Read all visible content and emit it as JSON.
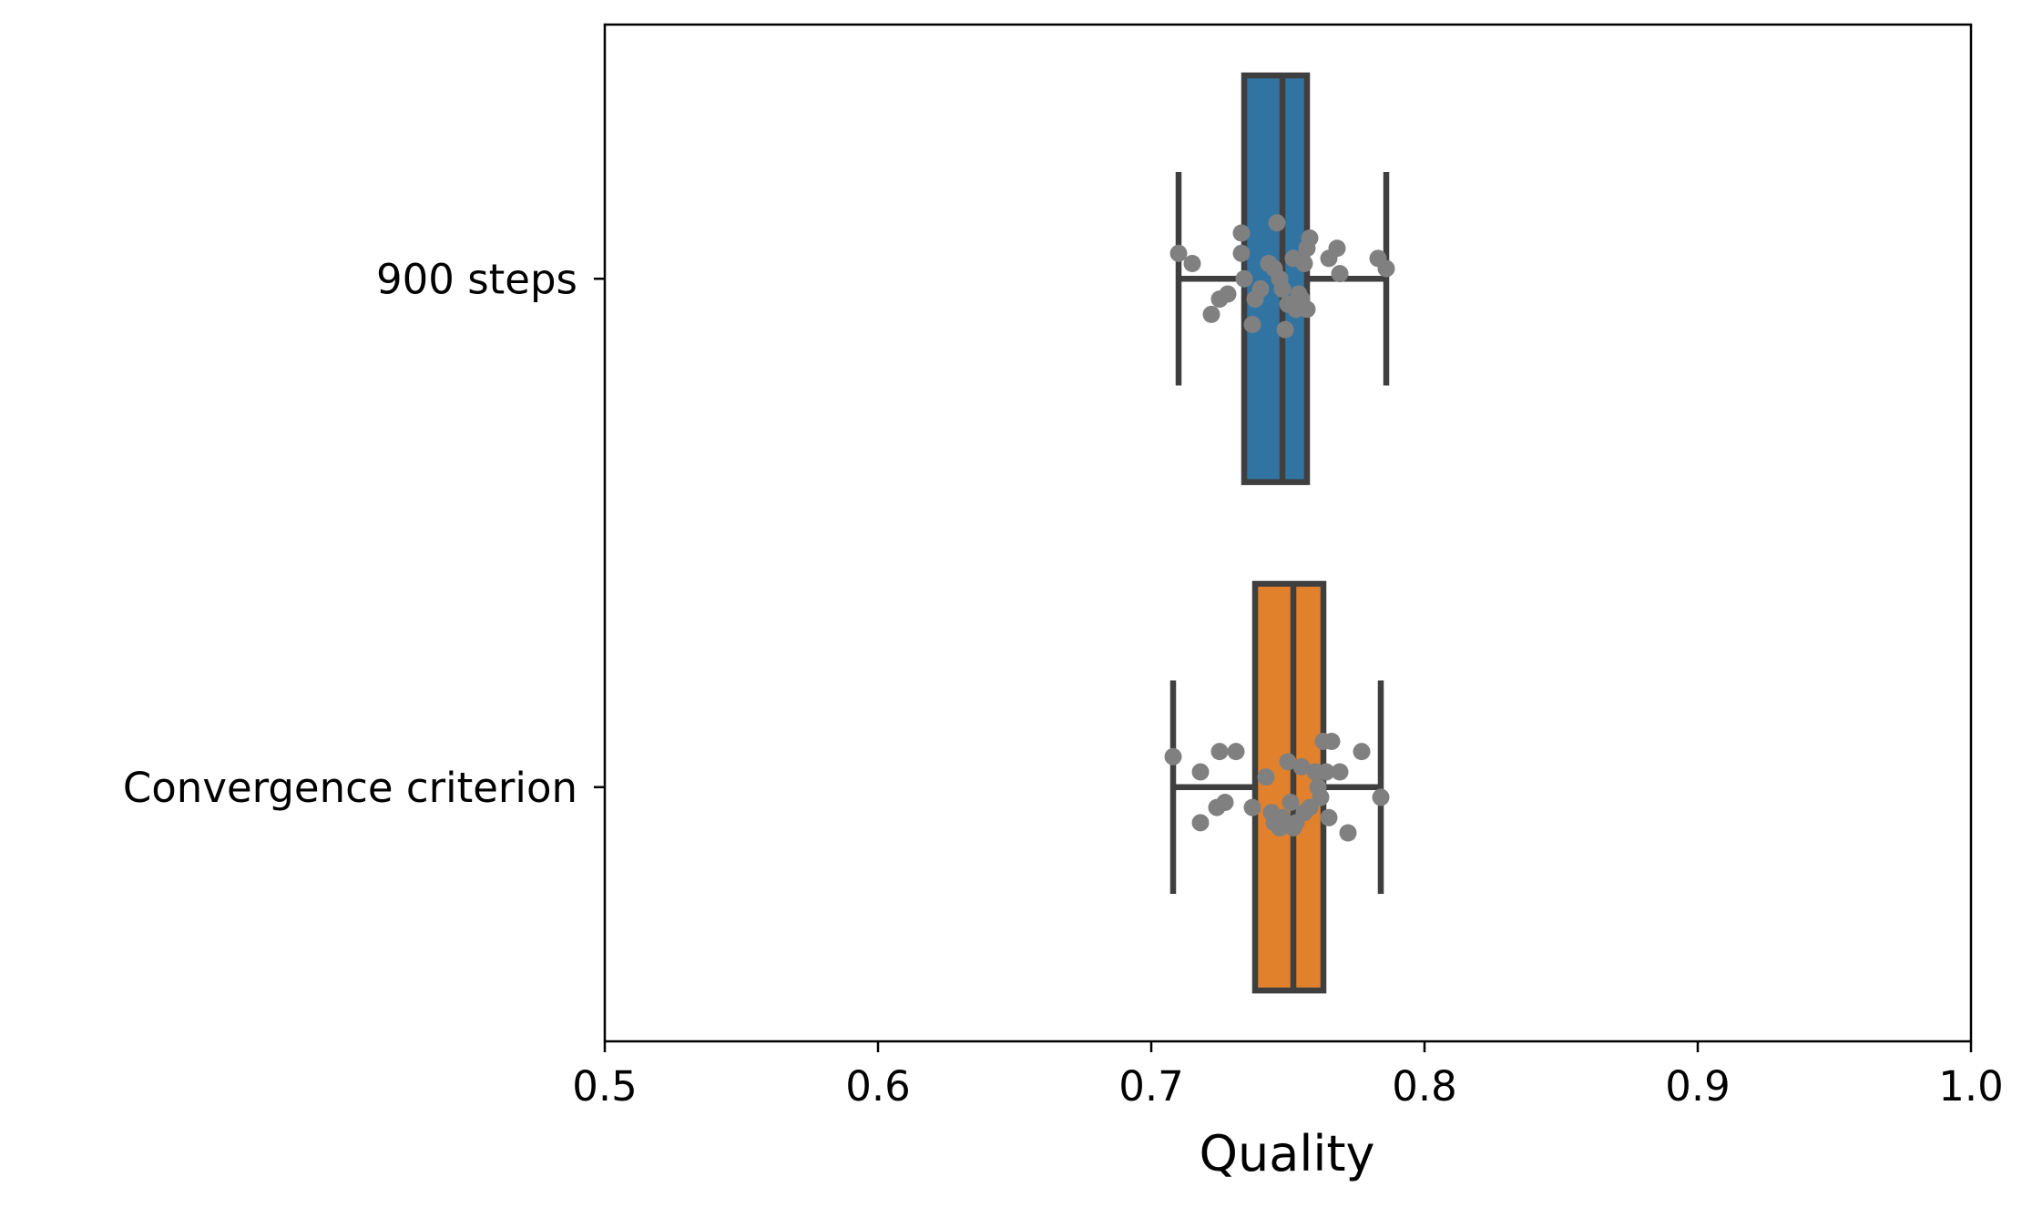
{
  "chart_data": {
    "type": "box",
    "orientation": "horizontal",
    "title": "",
    "xlabel": "Quality",
    "ylabel": "",
    "xlim": [
      0.5,
      1.0
    ],
    "xticks": [
      "0.5",
      "0.6",
      "0.7",
      "0.8",
      "0.9",
      "1.0"
    ],
    "grid": false,
    "legend": "none",
    "categories": [
      "900 steps",
      "Convergence criterion"
    ],
    "series": [
      {
        "category": "900 steps",
        "color": "#3274a1",
        "whisker_low": 0.71,
        "q1": 0.734,
        "median": 0.748,
        "q3": 0.757,
        "whisker_high": 0.786,
        "points": [
          {
            "x": 0.71,
            "j": -0.05
          },
          {
            "x": 0.715,
            "j": -0.03
          },
          {
            "x": 0.722,
            "j": 0.07
          },
          {
            "x": 0.725,
            "j": 0.04
          },
          {
            "x": 0.728,
            "j": 0.03
          },
          {
            "x": 0.733,
            "j": -0.09
          },
          {
            "x": 0.733,
            "j": -0.05
          },
          {
            "x": 0.734,
            "j": 0.0
          },
          {
            "x": 0.737,
            "j": 0.09
          },
          {
            "x": 0.738,
            "j": 0.04
          },
          {
            "x": 0.74,
            "j": 0.02
          },
          {
            "x": 0.743,
            "j": -0.03
          },
          {
            "x": 0.745,
            "j": -0.02
          },
          {
            "x": 0.746,
            "j": -0.11
          },
          {
            "x": 0.747,
            "j": 0.0
          },
          {
            "x": 0.748,
            "j": 0.02
          },
          {
            "x": 0.749,
            "j": 0.1
          },
          {
            "x": 0.75,
            "j": 0.05
          },
          {
            "x": 0.752,
            "j": -0.04
          },
          {
            "x": 0.753,
            "j": 0.06
          },
          {
            "x": 0.754,
            "j": 0.03
          },
          {
            "x": 0.755,
            "j": 0.04
          },
          {
            "x": 0.756,
            "j": -0.03
          },
          {
            "x": 0.757,
            "j": 0.06
          },
          {
            "x": 0.757,
            "j": -0.06
          },
          {
            "x": 0.758,
            "j": -0.08
          },
          {
            "x": 0.765,
            "j": -0.04
          },
          {
            "x": 0.768,
            "j": -0.06
          },
          {
            "x": 0.769,
            "j": -0.01
          },
          {
            "x": 0.783,
            "j": -0.04
          },
          {
            "x": 0.786,
            "j": -0.02
          }
        ]
      },
      {
        "category": "Convergence criterion",
        "color": "#e1812c",
        "whisker_low": 0.708,
        "q1": 0.738,
        "median": 0.752,
        "q3": 0.763,
        "whisker_high": 0.784,
        "points": [
          {
            "x": 0.708,
            "j": -0.06
          },
          {
            "x": 0.718,
            "j": -0.03
          },
          {
            "x": 0.718,
            "j": 0.07
          },
          {
            "x": 0.724,
            "j": 0.04
          },
          {
            "x": 0.725,
            "j": -0.07
          },
          {
            "x": 0.727,
            "j": 0.03
          },
          {
            "x": 0.731,
            "j": -0.07
          },
          {
            "x": 0.737,
            "j": 0.04
          },
          {
            "x": 0.742,
            "j": -0.02
          },
          {
            "x": 0.744,
            "j": 0.05
          },
          {
            "x": 0.745,
            "j": 0.07
          },
          {
            "x": 0.747,
            "j": 0.08
          },
          {
            "x": 0.748,
            "j": 0.06
          },
          {
            "x": 0.75,
            "j": -0.05
          },
          {
            "x": 0.751,
            "j": 0.03
          },
          {
            "x": 0.752,
            "j": 0.08
          },
          {
            "x": 0.753,
            "j": 0.07
          },
          {
            "x": 0.755,
            "j": -0.04
          },
          {
            "x": 0.756,
            "j": 0.05
          },
          {
            "x": 0.758,
            "j": 0.04
          },
          {
            "x": 0.76,
            "j": -0.03
          },
          {
            "x": 0.761,
            "j": 0.0
          },
          {
            "x": 0.762,
            "j": 0.02
          },
          {
            "x": 0.763,
            "j": -0.09
          },
          {
            "x": 0.764,
            "j": -0.03
          },
          {
            "x": 0.765,
            "j": 0.06
          },
          {
            "x": 0.766,
            "j": -0.09
          },
          {
            "x": 0.769,
            "j": -0.03
          },
          {
            "x": 0.772,
            "j": 0.09
          },
          {
            "x": 0.777,
            "j": -0.07
          },
          {
            "x": 0.784,
            "j": 0.02
          }
        ]
      }
    ],
    "colors": {
      "box_edge": "#3f3f3f",
      "points": "#808080",
      "axis": "#000000"
    }
  }
}
